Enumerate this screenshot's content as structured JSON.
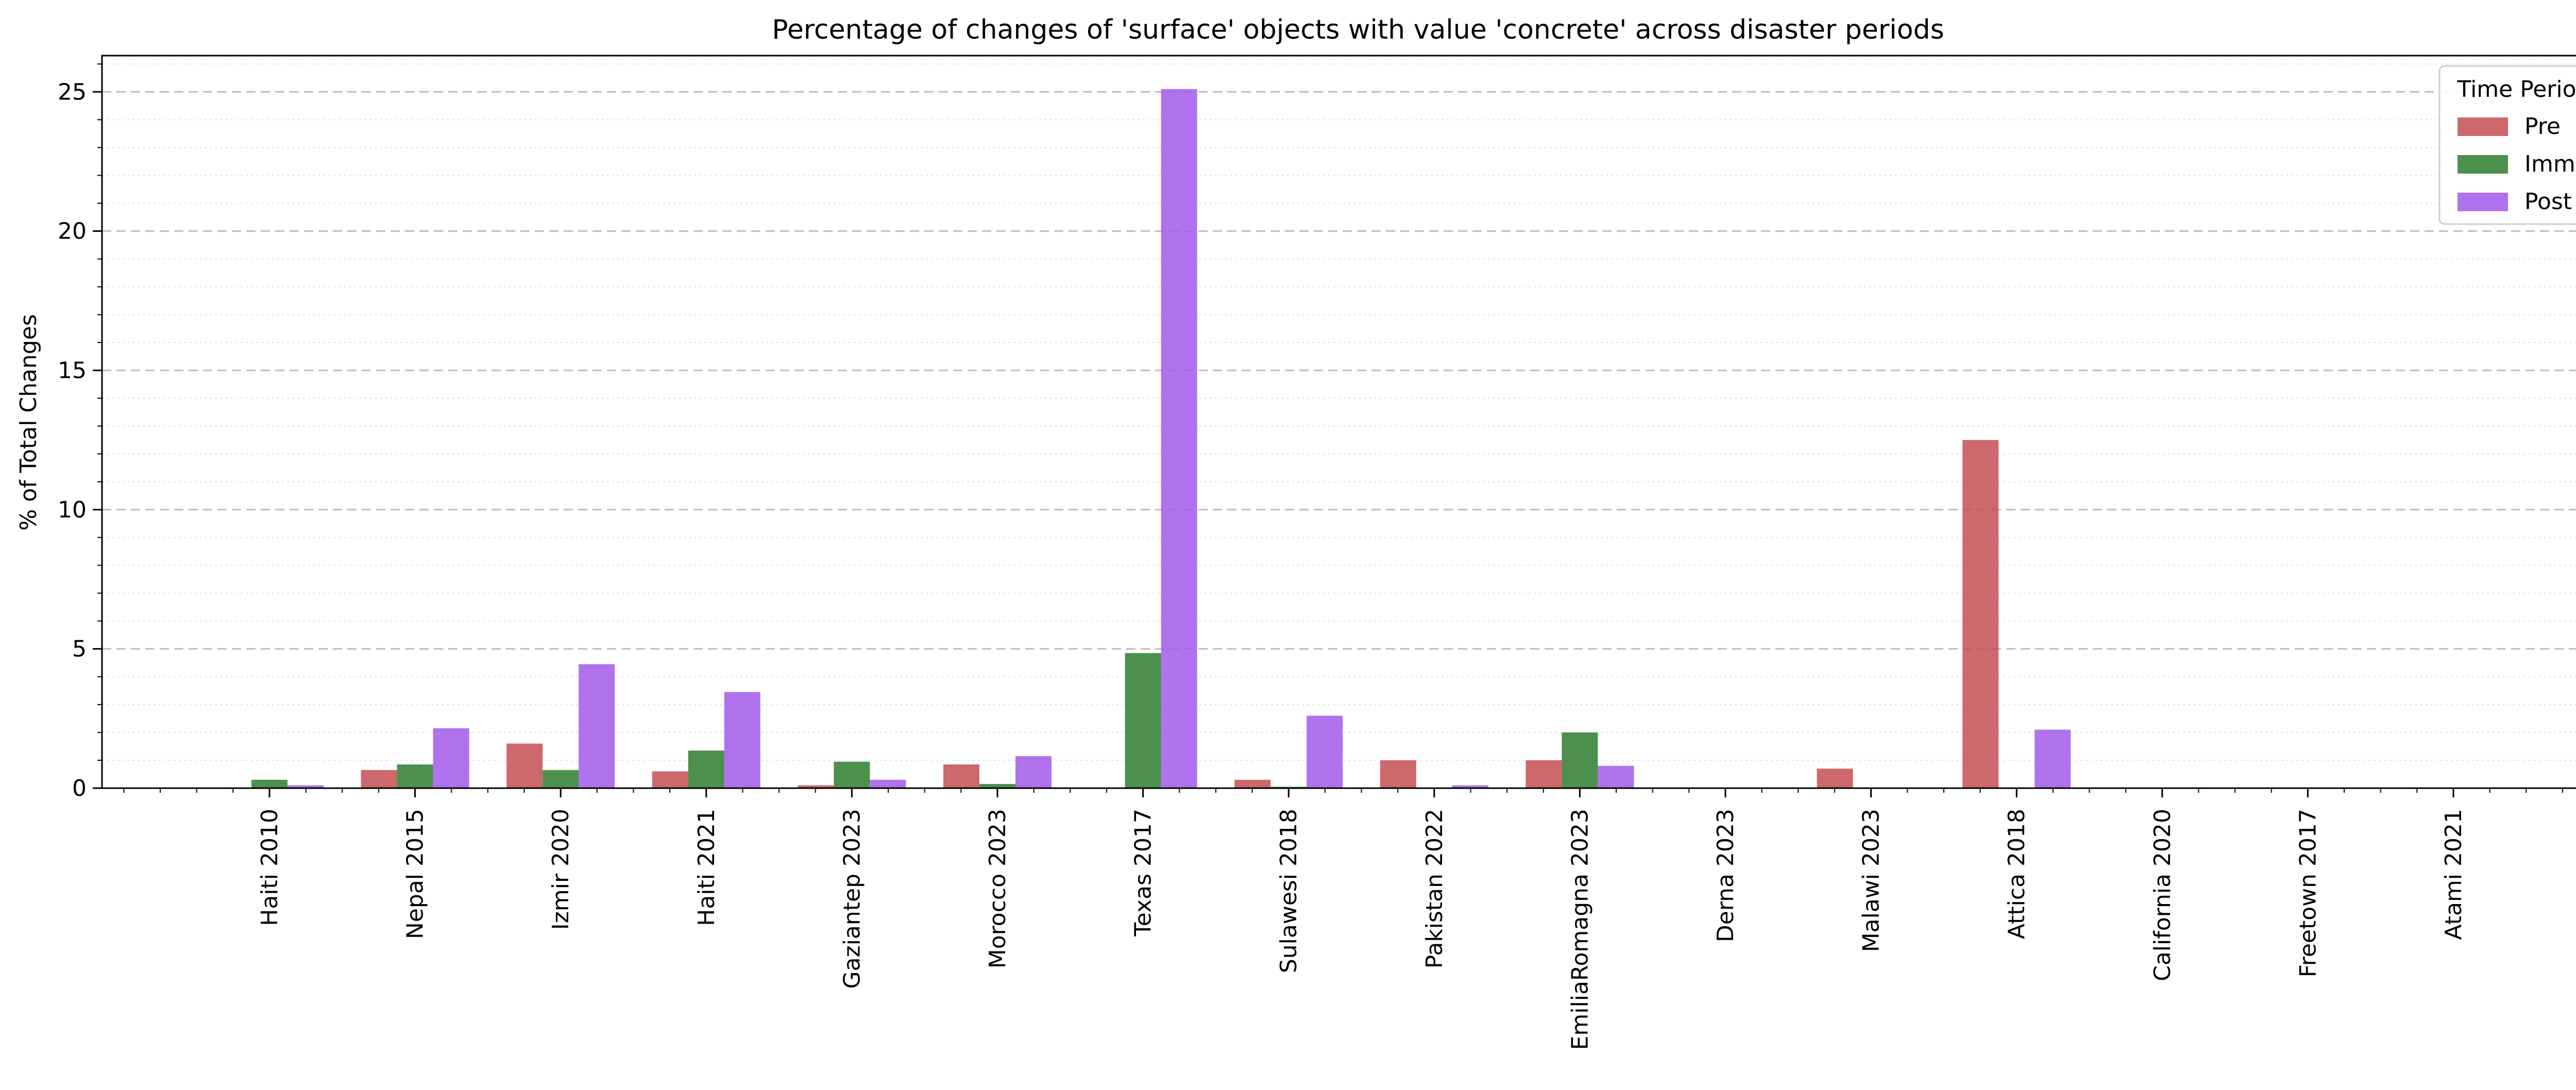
{
  "chart_data": {
    "type": "bar",
    "title": "Percentage of changes of 'surface' objects with value 'concrete' across disaster periods",
    "xlabel": "",
    "ylabel": "% of Total Changes",
    "ylim": [
      0,
      26.3
    ],
    "yticks": [
      0,
      5,
      10,
      15,
      20,
      25
    ],
    "grid": "y-major dashed, y-minor dotted",
    "categories": [
      "Haiti 2010",
      "Nepal 2015",
      "Izmir 2020",
      "Haiti 2021",
      "Gaziantep 2023",
      "Morocco 2023",
      "Texas 2017",
      "Sulawesi 2018",
      "Pakistan 2022",
      "EmiliaRomagna 2023",
      "Derna 2023",
      "Malawi 2023",
      "Attica 2018",
      "California 2020",
      "Freetown 2017",
      "Atami 2021"
    ],
    "series": [
      {
        "name": "Pre",
        "color": "#c44e52",
        "values": [
          0,
          0.65,
          1.6,
          0.6,
          0.1,
          0.85,
          0,
          0.3,
          1.0,
          1.0,
          0,
          0.7,
          12.5,
          0,
          0,
          0
        ]
      },
      {
        "name": "Imm",
        "color": "#2e7d2e",
        "values": [
          0.3,
          0.85,
          0.65,
          1.35,
          0.95,
          0.15,
          4.85,
          0.05,
          0,
          2.0,
          0,
          0,
          0,
          0,
          0,
          0
        ]
      },
      {
        "name": "Post",
        "color": "#a259ea",
        "values": [
          0.1,
          2.15,
          4.45,
          3.45,
          0.3,
          1.15,
          25.1,
          2.6,
          0.1,
          0.8,
          0,
          0,
          2.1,
          0,
          0,
          0
        ]
      }
    ],
    "legend": {
      "title": "Time Period",
      "placement": "top-right"
    }
  }
}
